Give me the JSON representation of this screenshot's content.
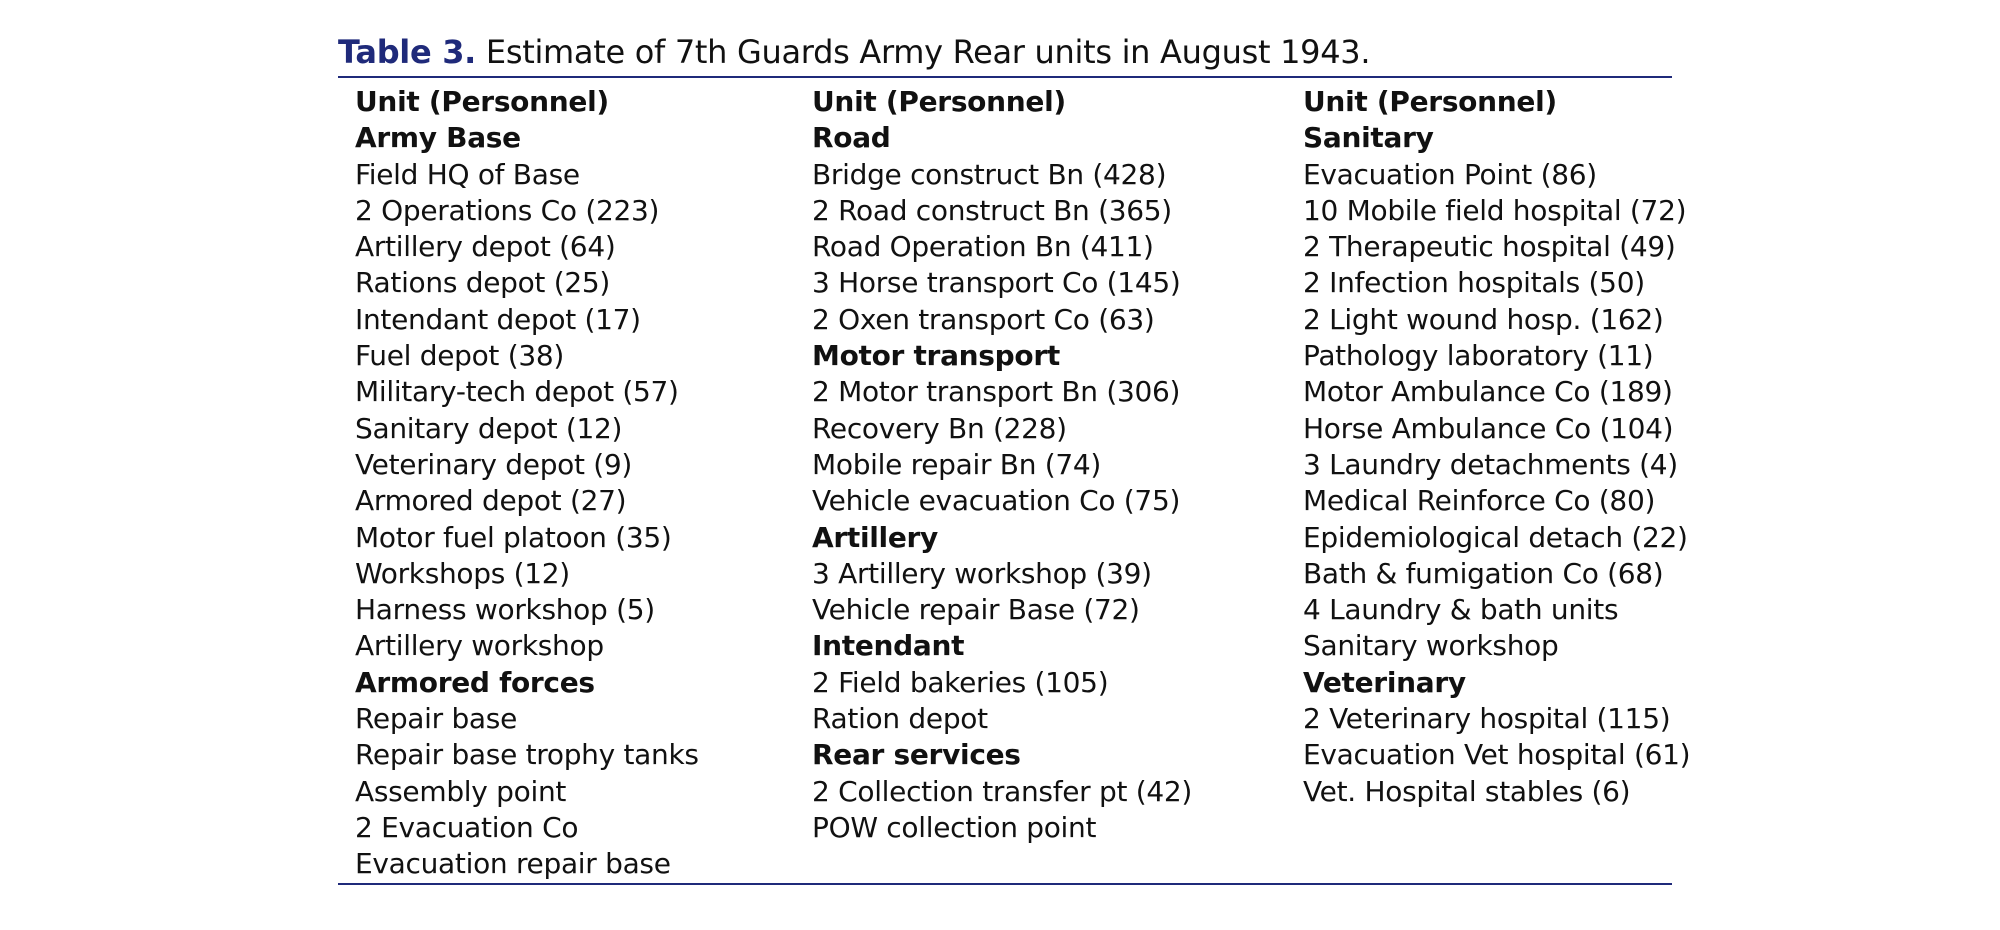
{
  "caption": {
    "label": "Table 3.",
    "text": "Estimate of 7th Guards Army Rear units in August 1943."
  },
  "columns": [
    {
      "rows": [
        {
          "text": "Unit (Personnel)",
          "bold": true
        },
        {
          "text": "Army Base",
          "bold": true
        },
        {
          "text": "Field HQ of Base",
          "bold": false
        },
        {
          "text": "2 Operations Co (223)",
          "bold": false
        },
        {
          "text": "Artillery depot (64)",
          "bold": false
        },
        {
          "text": "Rations depot (25)",
          "bold": false
        },
        {
          "text": "Intendant depot (17)",
          "bold": false
        },
        {
          "text": "Fuel depot (38)",
          "bold": false
        },
        {
          "text": "Military-tech depot (57)",
          "bold": false
        },
        {
          "text": "Sanitary depot (12)",
          "bold": false
        },
        {
          "text": "Veterinary depot (9)",
          "bold": false
        },
        {
          "text": "Armored depot (27)",
          "bold": false
        },
        {
          "text": "Motor fuel platoon (35)",
          "bold": false
        },
        {
          "text": "Workshops (12)",
          "bold": false
        },
        {
          "text": "Harness workshop (5)",
          "bold": false
        },
        {
          "text": "Artillery workshop",
          "bold": false
        },
        {
          "text": "Armored forces",
          "bold": true
        },
        {
          "text": "Repair base",
          "bold": false
        },
        {
          "text": "Repair base trophy tanks",
          "bold": false
        },
        {
          "text": "Assembly point",
          "bold": false
        },
        {
          "text": "2 Evacuation Co",
          "bold": false
        },
        {
          "text": "Evacuation repair base",
          "bold": false
        }
      ]
    },
    {
      "rows": [
        {
          "text": "Unit (Personnel)",
          "bold": true
        },
        {
          "text": "Road",
          "bold": true
        },
        {
          "text": "Bridge construct Bn (428)",
          "bold": false
        },
        {
          "text": "2 Road construct Bn (365)",
          "bold": false
        },
        {
          "text": "Road Operation Bn (411)",
          "bold": false
        },
        {
          "text": "3 Horse transport Co (145)",
          "bold": false
        },
        {
          "text": "2 Oxen transport Co (63)",
          "bold": false
        },
        {
          "text": "Motor transport",
          "bold": true
        },
        {
          "text": "2 Motor transport Bn (306)",
          "bold": false
        },
        {
          "text": "Recovery Bn (228)",
          "bold": false
        },
        {
          "text": "Mobile repair Bn (74)",
          "bold": false
        },
        {
          "text": "Vehicle evacuation Co (75)",
          "bold": false
        },
        {
          "text": "Artillery",
          "bold": true
        },
        {
          "text": "3 Artillery workshop (39)",
          "bold": false
        },
        {
          "text": "Vehicle repair Base (72)",
          "bold": false
        },
        {
          "text": "Intendant",
          "bold": true
        },
        {
          "text": "2 Field bakeries (105)",
          "bold": false
        },
        {
          "text": "Ration depot",
          "bold": false
        },
        {
          "text": "Rear services",
          "bold": true
        },
        {
          "text": "2 Collection transfer pt (42)",
          "bold": false
        },
        {
          "text": "POW collection point",
          "bold": false
        }
      ]
    },
    {
      "rows": [
        {
          "text": "Unit (Personnel)",
          "bold": true
        },
        {
          "text": "Sanitary",
          "bold": true
        },
        {
          "text": "Evacuation Point (86)",
          "bold": false
        },
        {
          "text": "10 Mobile field hospital (72)",
          "bold": false
        },
        {
          "text": "2 Therapeutic hospital (49)",
          "bold": false
        },
        {
          "text": "2 Infection hospitals (50)",
          "bold": false
        },
        {
          "text": "2 Light wound hosp. (162)",
          "bold": false
        },
        {
          "text": "Pathology laboratory (11)",
          "bold": false
        },
        {
          "text": "Motor Ambulance Co (189)",
          "bold": false
        },
        {
          "text": "Horse Ambulance Co (104)",
          "bold": false
        },
        {
          "text": "3 Laundry detachments (4)",
          "bold": false
        },
        {
          "text": "Medical Reinforce Co (80)",
          "bold": false
        },
        {
          "text": "Epidemiological detach (22)",
          "bold": false
        },
        {
          "text": "Bath & fumigation Co (68)",
          "bold": false
        },
        {
          "text": "4 Laundry & bath units",
          "bold": false
        },
        {
          "text": "Sanitary workshop",
          "bold": false
        },
        {
          "text": "Veterinary",
          "bold": true
        },
        {
          "text": "2 Veterinary hospital (115)",
          "bold": false
        },
        {
          "text": "Evacuation Vet hospital (61)",
          "bold": false
        },
        {
          "text": "Vet. Hospital stables (6)",
          "bold": false
        }
      ]
    }
  ]
}
